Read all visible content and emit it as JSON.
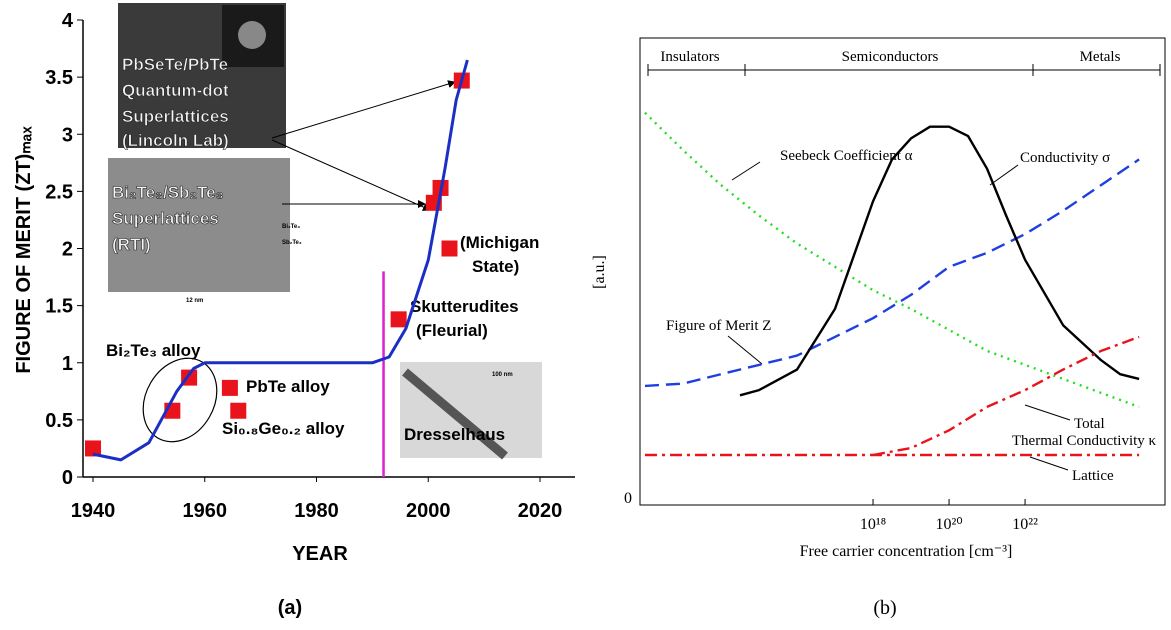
{
  "chart_data": [
    {
      "type": "scatter",
      "caption": "(a)",
      "x_label": "YEAR",
      "y_label": "FIGURE OF MERIT (ZT)ₘₐₓ",
      "xlim": [
        1940,
        2020
      ],
      "xticks": [
        1940,
        1960,
        1980,
        2000,
        2020
      ],
      "ylim": [
        0,
        4
      ],
      "yticks": [
        0,
        0.5,
        1,
        1.5,
        2,
        2.5,
        3,
        3.5,
        4
      ],
      "vline": {
        "x": 1992,
        "from": 0,
        "to": 1.8,
        "color": "#e020d0"
      },
      "series": [
        {
          "mode": "markers",
          "color": "#e8131b",
          "x": [
            1940,
            1954.2,
            1957.2,
            1964.5,
            1966,
            1994.7,
            2001,
            2002.2,
            2003.8,
            2006
          ],
          "values": [
            0.25,
            0.58,
            0.87,
            0.78,
            0.58,
            1.38,
            2.4,
            2.53,
            2.0,
            3.47
          ]
        },
        {
          "mode": "line",
          "color": "#1c2fc4",
          "x": [
            1940,
            1945,
            1950,
            1955,
            1958,
            1960,
            1990,
            1993,
            1996,
            2000,
            2003,
            2005,
            2007
          ],
          "values": [
            0.2,
            0.15,
            0.3,
            0.75,
            0.95,
            1,
            1,
            1.05,
            1.3,
            1.9,
            2.7,
            3.3,
            3.65
          ]
        }
      ],
      "annotations": [
        "PbSeTe/PbTe",
        "Quantum-dot",
        "Superlattices",
        "(Lincoln Lab)",
        "Bi₂Te₃/Sb₂Te₃",
        "Superlattices",
        "(RTI)",
        "(Michigan",
        "State)",
        "Skutterudites",
        "(Fleurial)",
        "Bi₂Te₃ alloy",
        "PbTe alloy",
        "Si₀.₈Ge₀.₂ alloy",
        "Dresselhaus",
        "12 nm",
        "100 nm",
        "Bi₂Te₃",
        "Sb₂Te₃"
      ]
    },
    {
      "type": "line",
      "caption": "(b)",
      "x_label": "Free carrier concentration [cm⁻³]",
      "y_label": "[a.u.]",
      "log_x": true,
      "xlim": [
        740000000000.0,
        4.8e+25
      ],
      "xticks": [
        {
          "value": 1e+18,
          "label": "10¹⁸"
        },
        {
          "value": 1e+20,
          "label": "10²⁰"
        },
        {
          "value": 1e+22,
          "label": "10²²"
        }
      ],
      "ylim": [
        0,
        1
      ],
      "yticks": [
        0
      ],
      "regions": [
        "Insulators",
        "Semiconductors",
        "Metals"
      ],
      "series": [
        {
          "name": "Seebeck Coefficient α",
          "color": "#22dd22",
          "style": "dotted",
          "x": [
            1000000000000.0,
            10000000000000.0,
            100000000000000.0,
            1000000000000000.0,
            1e+16,
            1e+17,
            1e+18,
            1e+19,
            1e+20,
            1e+21,
            1e+22,
            1e+23,
            1e+24,
            1e+25
          ],
          "values": [
            0.84,
            0.76,
            0.685,
            0.62,
            0.56,
            0.51,
            0.46,
            0.42,
            0.375,
            0.33,
            0.3,
            0.27,
            0.24,
            0.21
          ]
        },
        {
          "name": "Conductivity σ",
          "color": "#1f3fe0",
          "style": "dashed",
          "x": [
            1000000000000.0,
            10000000000000.0,
            100000000000000.0,
            1000000000000000.0,
            1e+16,
            1e+17,
            1e+18,
            1e+19,
            1e+20,
            1e+21,
            1e+22,
            1e+23,
            1e+24,
            1e+25
          ],
          "values": [
            0.255,
            0.26,
            0.28,
            0.3,
            0.32,
            0.36,
            0.4,
            0.45,
            0.51,
            0.54,
            0.58,
            0.63,
            0.685,
            0.74
          ]
        },
        {
          "name": "Figure of Merit Z",
          "color": "#000000",
          "style": "solid",
          "x": [
            316200000000000.0,
            1000000000000000.0,
            1e+16,
            1e+17,
            3.162e+17,
            1e+18,
            3.162e+18,
            1e+19,
            3.162e+19,
            1e+20,
            3.162e+20,
            1e+21,
            3.162e+21,
            1e+22,
            1e+23,
            1e+24,
            3.162e+24,
            1e+25
          ],
          "values": [
            0.235,
            0.246,
            0.29,
            0.42,
            0.535,
            0.65,
            0.74,
            0.785,
            0.81,
            0.81,
            0.79,
            0.72,
            0.62,
            0.525,
            0.385,
            0.31,
            0.28,
            0.27
          ]
        },
        {
          "name": "Total",
          "color": "#e8131b",
          "style": "dashdot",
          "x": [
            1e+18,
            1e+19,
            1e+20,
            1e+21,
            1e+22,
            1e+23,
            1e+24,
            1e+25
          ],
          "values": [
            0.107,
            0.122,
            0.16,
            0.21,
            0.246,
            0.29,
            0.33,
            0.36
          ]
        },
        {
          "name": "Lattice",
          "color": "#e8131b",
          "style": "dashdot",
          "x": [
            1000000000000.0,
            1e+25
          ],
          "values": [
            0.107,
            0.107
          ]
        }
      ],
      "annotations": [
        "Thermal Conductivity κ"
      ]
    }
  ]
}
